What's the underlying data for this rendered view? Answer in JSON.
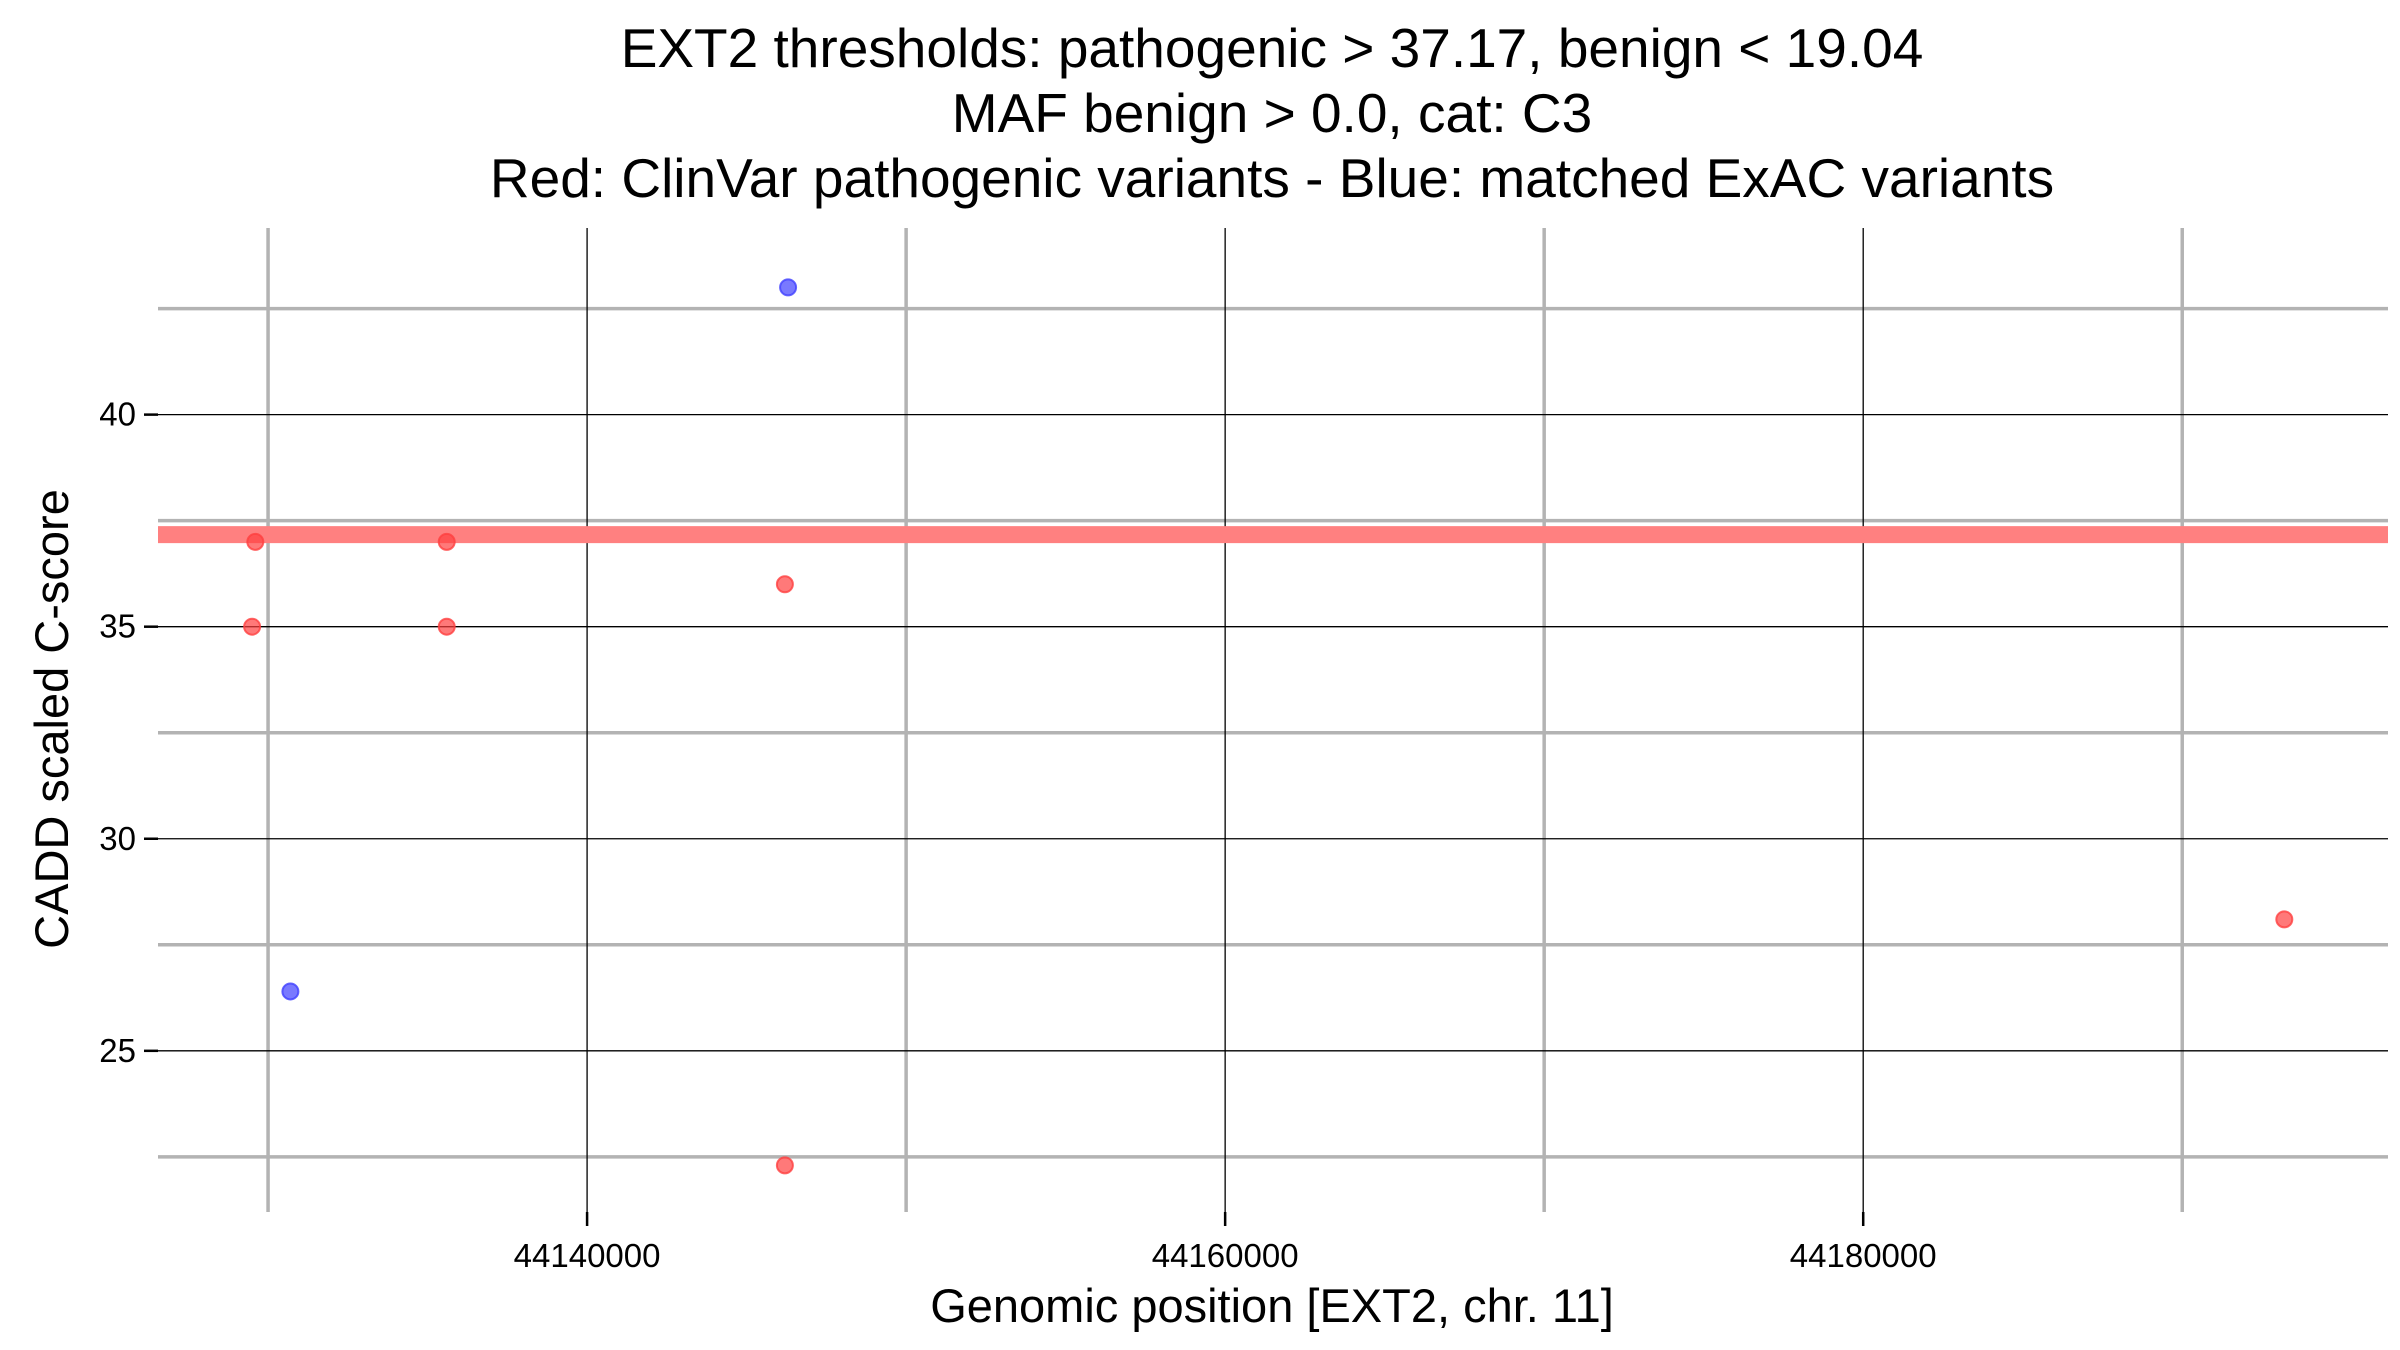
{
  "chart_data": {
    "type": "scatter",
    "title_lines": [
      "EXT2 thresholds: pathogenic > 37.17, benign < 19.04",
      "MAF benign > 0.0, cat: C3",
      "Red: ClinVar pathogenic variants - Blue: matched ExAC variants"
    ],
    "xlabel": "Genomic position [EXT2, chr. 11]",
    "ylabel": "CADD scaled C-score",
    "xlim": [
      44126550,
      44196450
    ],
    "ylim": [
      21.2,
      44.4
    ],
    "x_major_ticks": [
      44140000,
      44160000,
      44180000
    ],
    "x_tick_labels": [
      "44140000",
      "44160000",
      "44180000"
    ],
    "x_minor_ticks": [
      44130000,
      44150000,
      44170000,
      44190000
    ],
    "y_major_ticks": [
      25,
      30,
      35,
      40
    ],
    "y_tick_labels": [
      "25",
      "30",
      "35",
      "40"
    ],
    "y_minor_ticks": [
      22.5,
      27.5,
      32.5,
      37.5,
      42.5
    ],
    "threshold_line": {
      "y": 37.17,
      "color": "#ff8080"
    },
    "series": [
      {
        "color": "#ff4040",
        "points": [
          {
            "x": 44129600,
            "y": 37.0
          },
          {
            "x": 44129500,
            "y": 35.0
          },
          {
            "x": 44135600,
            "y": 37.0
          },
          {
            "x": 44135600,
            "y": 35.0
          },
          {
            "x": 44146200,
            "y": 36.0
          },
          {
            "x": 44146200,
            "y": 22.3
          },
          {
            "x": 44193200,
            "y": 28.1
          }
        ]
      },
      {
        "color": "#4040ff",
        "points": [
          {
            "x": 44146300,
            "y": 43.0
          },
          {
            "x": 44130700,
            "y": 26.4
          }
        ]
      }
    ],
    "grid": true,
    "legend": "none"
  }
}
